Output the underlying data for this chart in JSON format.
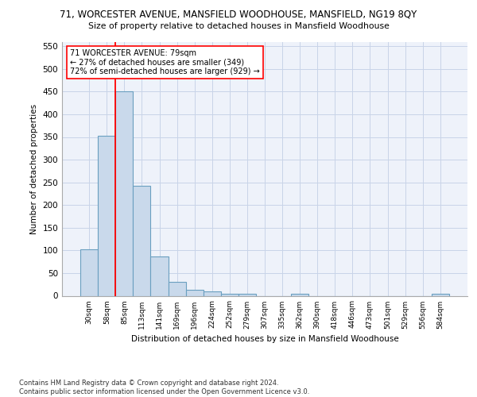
{
  "title_line1": "71, WORCESTER AVENUE, MANSFIELD WOODHOUSE, MANSFIELD, NG19 8QY",
  "title_line2": "Size of property relative to detached houses in Mansfield Woodhouse",
  "xlabel": "Distribution of detached houses by size in Mansfield Woodhouse",
  "ylabel": "Number of detached properties",
  "footnote": "Contains HM Land Registry data © Crown copyright and database right 2024.\nContains public sector information licensed under the Open Government Licence v3.0.",
  "bar_labels": [
    "30sqm",
    "58sqm",
    "85sqm",
    "113sqm",
    "141sqm",
    "169sqm",
    "196sqm",
    "224sqm",
    "252sqm",
    "279sqm",
    "307sqm",
    "335sqm",
    "362sqm",
    "390sqm",
    "418sqm",
    "446sqm",
    "473sqm",
    "501sqm",
    "529sqm",
    "556sqm",
    "584sqm"
  ],
  "bar_values": [
    103,
    353,
    450,
    242,
    87,
    30,
    14,
    9,
    5,
    5,
    0,
    0,
    5,
    0,
    0,
    0,
    0,
    0,
    0,
    0,
    5
  ],
  "bar_color": "#c9d9eb",
  "bar_edge_color": "#6a9fc0",
  "ylim": [
    0,
    560
  ],
  "yticks": [
    0,
    50,
    100,
    150,
    200,
    250,
    300,
    350,
    400,
    450,
    500,
    550
  ],
  "vline_color": "red",
  "annotation_text": "71 WORCESTER AVENUE: 79sqm\n← 27% of detached houses are smaller (349)\n72% of semi-detached houses are larger (929) →",
  "bg_color": "#eef2fa",
  "grid_color": "#c8d4e8"
}
